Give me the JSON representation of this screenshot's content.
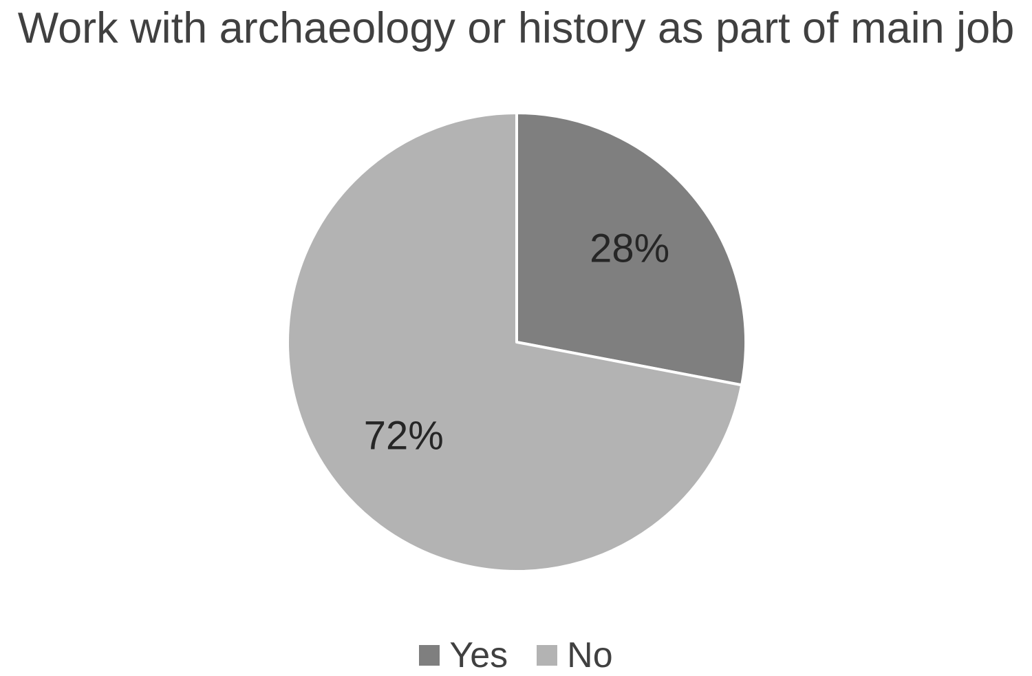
{
  "chart_data": {
    "type": "pie",
    "title": "Work with archaeology or history as part of main job",
    "categories": [
      "Yes",
      "No"
    ],
    "values": [
      28,
      72
    ],
    "data_labels": [
      "28%",
      "72%"
    ],
    "colors": [
      "#7f7f7f",
      "#b3b3b3"
    ],
    "start_angle_deg": 0,
    "direction": "clockwise",
    "legend_position": "bottom"
  }
}
